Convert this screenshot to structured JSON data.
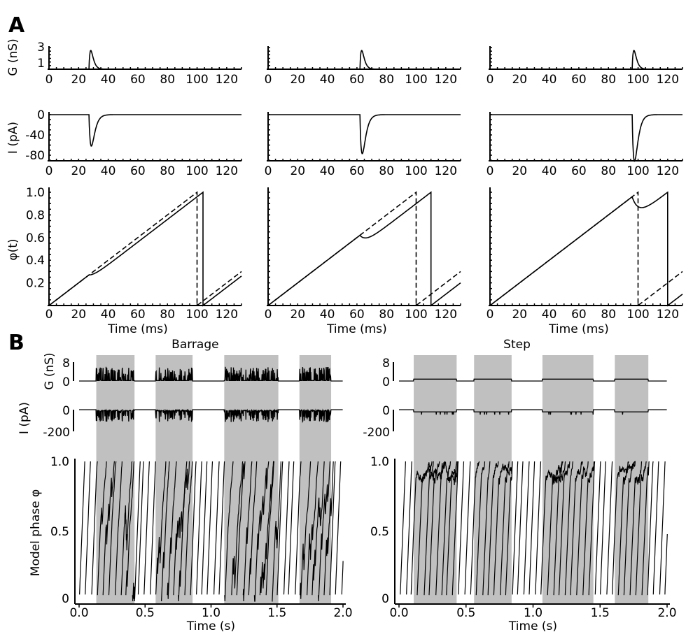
{
  "chart_data": [
    {
      "panel": "A",
      "type": "line",
      "panel_label": "A",
      "xlabel": "Time (ms)",
      "xlim": [
        0,
        130
      ],
      "xticks": [
        "0",
        "20",
        "40",
        "60",
        "80",
        "100",
        "120"
      ],
      "unperturbed_period_ms": 100,
      "rows": {
        "G": {
          "ylabel": "G (nS)",
          "yticks": [
            "3",
            "1"
          ],
          "ylim": [
            0,
            3
          ]
        },
        "I": {
          "ylabel": "I (pA)",
          "yticks": [
            "0",
            "-40",
            "-80"
          ],
          "ylim": [
            -90,
            0
          ]
        },
        "phi": {
          "ylabel": "φ(t)",
          "yticks": [
            "1.0",
            "0.8",
            "0.6",
            "0.4",
            "0.2"
          ],
          "ylim": [
            0,
            1
          ]
        }
      },
      "columns": [
        {
          "input_time_ms": 27,
          "g_peak_nS": 2.6,
          "i_peak_pA": -62,
          "phase_delay_ms": 4
        },
        {
          "input_time_ms": 62,
          "g_peak_nS": 2.6,
          "i_peak_pA": -77,
          "phase_delay_ms": 10
        },
        {
          "input_time_ms": 96,
          "g_peak_nS": 2.6,
          "i_peak_pA": -92,
          "phase_delay_ms": 20
        }
      ],
      "series": [
        {
          "name": "perturbed phase",
          "style": "solid"
        },
        {
          "name": "unperturbed phase",
          "style": "dashed"
        }
      ]
    },
    {
      "panel": "B",
      "type": "line",
      "panel_label": "B",
      "xlabel": "Time (s)",
      "xlim": [
        0,
        2.0
      ],
      "xticks": [
        "0.0",
        "0.5",
        "1.0",
        "1.5",
        "2.0"
      ],
      "rows": {
        "G": {
          "ylabel": "G (nS)",
          "yticks": [
            "8",
            "0"
          ],
          "ylim": [
            0,
            8
          ]
        },
        "I": {
          "ylabel": "I (pA)",
          "yticks": [
            "0",
            "-200"
          ],
          "ylim": [
            -200,
            0
          ]
        },
        "phi": {
          "ylabel": "Model phase  φ",
          "yticks": [
            "1.0",
            "0.5",
            "0"
          ],
          "ylim": [
            0,
            1
          ]
        }
      },
      "shade_color": "#c0c0c0",
      "subplots": [
        {
          "title": "Barrage",
          "input": "barrage",
          "input_windows_s": [
            [
              0.13,
              0.42
            ],
            [
              0.58,
              0.86
            ],
            [
              1.1,
              1.51
            ],
            [
              1.67,
              1.91
            ]
          ]
        },
        {
          "title": "Step",
          "input": "step",
          "input_windows_s": [
            [
              0.11,
              0.43
            ],
            [
              0.56,
              0.84
            ],
            [
              1.07,
              1.45
            ],
            [
              1.61,
              1.86
            ]
          ],
          "step_level_nS": 0.8,
          "step_current_pA": -20
        }
      ]
    }
  ]
}
